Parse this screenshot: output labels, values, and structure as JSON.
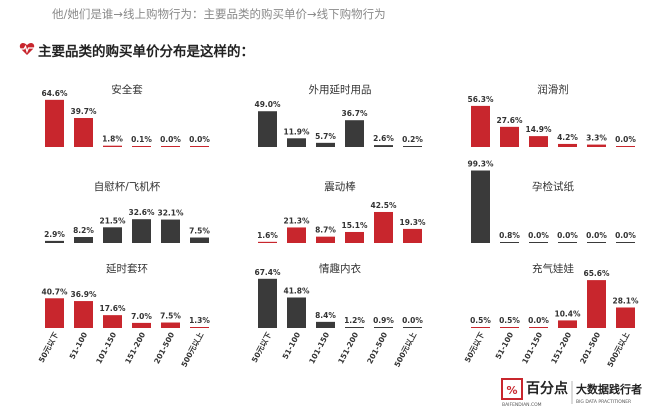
{
  "header": {
    "breadcrumb": "他/她们是谁→线上购物行为：主要品类的购买单价→线下购物行为",
    "subtitle": "主要品类的购买单价分布是这样的："
  },
  "logo": {
    "name": "百分点",
    "latin": "BAIFENDIAN.COM",
    "slogan": "大数据践行者",
    "slogan_en": "BIG DATA PRACTITIONER"
  },
  "colors": {
    "red": "#c8262d",
    "dark": "#3a3a3a",
    "accent": "#c8262d",
    "text": "#333333"
  },
  "chart_data": [
    {
      "type": "bar",
      "title": "安全套",
      "color": "red",
      "categories": [
        "50元以下",
        "51-100",
        "101-150",
        "151-200",
        "201-500",
        "500元以上"
      ],
      "values": [
        64.6,
        39.7,
        1.8,
        0.1,
        0.0,
        0.0
      ]
    },
    {
      "type": "bar",
      "title": "外用延时用品",
      "color": "dark",
      "categories": [
        "50元以下",
        "51-100",
        "101-150",
        "151-200",
        "201-500",
        "500元以上"
      ],
      "values": [
        49.0,
        11.9,
        5.7,
        36.7,
        2.6,
        0.2
      ]
    },
    {
      "type": "bar",
      "title": "润滑剂",
      "color": "red",
      "categories": [
        "50元以下",
        "51-100",
        "101-150",
        "151-200",
        "201-500",
        "500元以上"
      ],
      "values": [
        56.3,
        27.6,
        14.9,
        4.2,
        3.3,
        0.0
      ]
    },
    {
      "type": "bar",
      "title": "自慰杯/飞机杯",
      "color": "dark",
      "categories": [
        "50元以下",
        "51-100",
        "101-150",
        "151-200",
        "201-500",
        "500元以上"
      ],
      "values": [
        2.9,
        8.2,
        21.5,
        32.6,
        32.1,
        7.5
      ]
    },
    {
      "type": "bar",
      "title": "震动棒",
      "color": "red",
      "categories": [
        "50元以下",
        "51-100",
        "101-150",
        "151-200",
        "201-500",
        "500元以上"
      ],
      "values": [
        1.6,
        21.3,
        8.7,
        15.1,
        42.5,
        19.3
      ]
    },
    {
      "type": "bar",
      "title": "孕检试纸",
      "color": "dark",
      "categories": [
        "50元以下",
        "51-100",
        "101-150",
        "151-200",
        "201-500",
        "500元以上"
      ],
      "values": [
        99.3,
        0.8,
        0.0,
        0.0,
        0.0,
        0.0
      ]
    },
    {
      "type": "bar",
      "title": "延时套环",
      "color": "red",
      "categories": [
        "50元以下",
        "51-100",
        "101-150",
        "151-200",
        "201-500",
        "500元以上"
      ],
      "values": [
        40.7,
        36.9,
        17.6,
        7.0,
        7.5,
        1.3
      ]
    },
    {
      "type": "bar",
      "title": "情趣内衣",
      "color": "dark",
      "categories": [
        "50元以下",
        "51-100",
        "101-150",
        "151-200",
        "201-500",
        "500元以上"
      ],
      "values": [
        67.4,
        41.8,
        8.4,
        1.2,
        0.9,
        0.0
      ]
    },
    {
      "type": "bar",
      "title": "充气娃娃",
      "color": "red",
      "categories": [
        "50元以下",
        "51-100",
        "101-150",
        "151-200",
        "201-500",
        "500元以上"
      ],
      "values": [
        0.5,
        0.5,
        0.0,
        10.4,
        65.6,
        28.1
      ]
    }
  ]
}
